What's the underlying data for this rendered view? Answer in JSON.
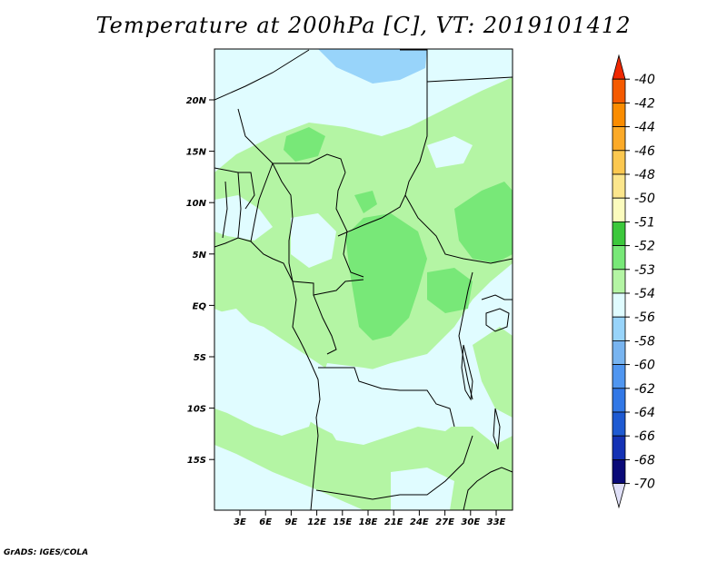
{
  "title": "Temperature at 200hPa [C], VT: 2019101412",
  "footer": "GrADS: IGES/COLA",
  "map": {
    "lat_labels": [
      "20N",
      "15N",
      "10N",
      "5N",
      "EQ",
      "5S",
      "10S",
      "15S"
    ],
    "lon_labels": [
      "3E",
      "6E",
      "9E",
      "12E",
      "15E",
      "18E",
      "21E",
      "24E",
      "27E",
      "30E",
      "33E"
    ],
    "colors": {
      "background": "#e0fcff",
      "band_minus53": "#b4f5a4",
      "band_minus52": "#78e878",
      "band_minus56": "#98d4fa",
      "coast": "#000000"
    }
  },
  "colorbar": {
    "labels": [
      "-40",
      "-42",
      "-44",
      "-46",
      "-48",
      "-50",
      "-51",
      "-52",
      "-53",
      "-54",
      "-56",
      "-58",
      "-60",
      "-62",
      "-64",
      "-66",
      "-68",
      "-70"
    ],
    "colors": [
      "#f02800",
      "#f55a00",
      "#fa8c00",
      "#fcaa28",
      "#fcc850",
      "#fce68c",
      "#fcfcbe",
      "#3cc83c",
      "#78e878",
      "#b4f5a4",
      "#e0fcff",
      "#98d4fa",
      "#78b4f0",
      "#5096f0",
      "#3278e6",
      "#1e5ad2",
      "#1432b4",
      "#0a0a78",
      "#e0e0f8"
    ]
  }
}
